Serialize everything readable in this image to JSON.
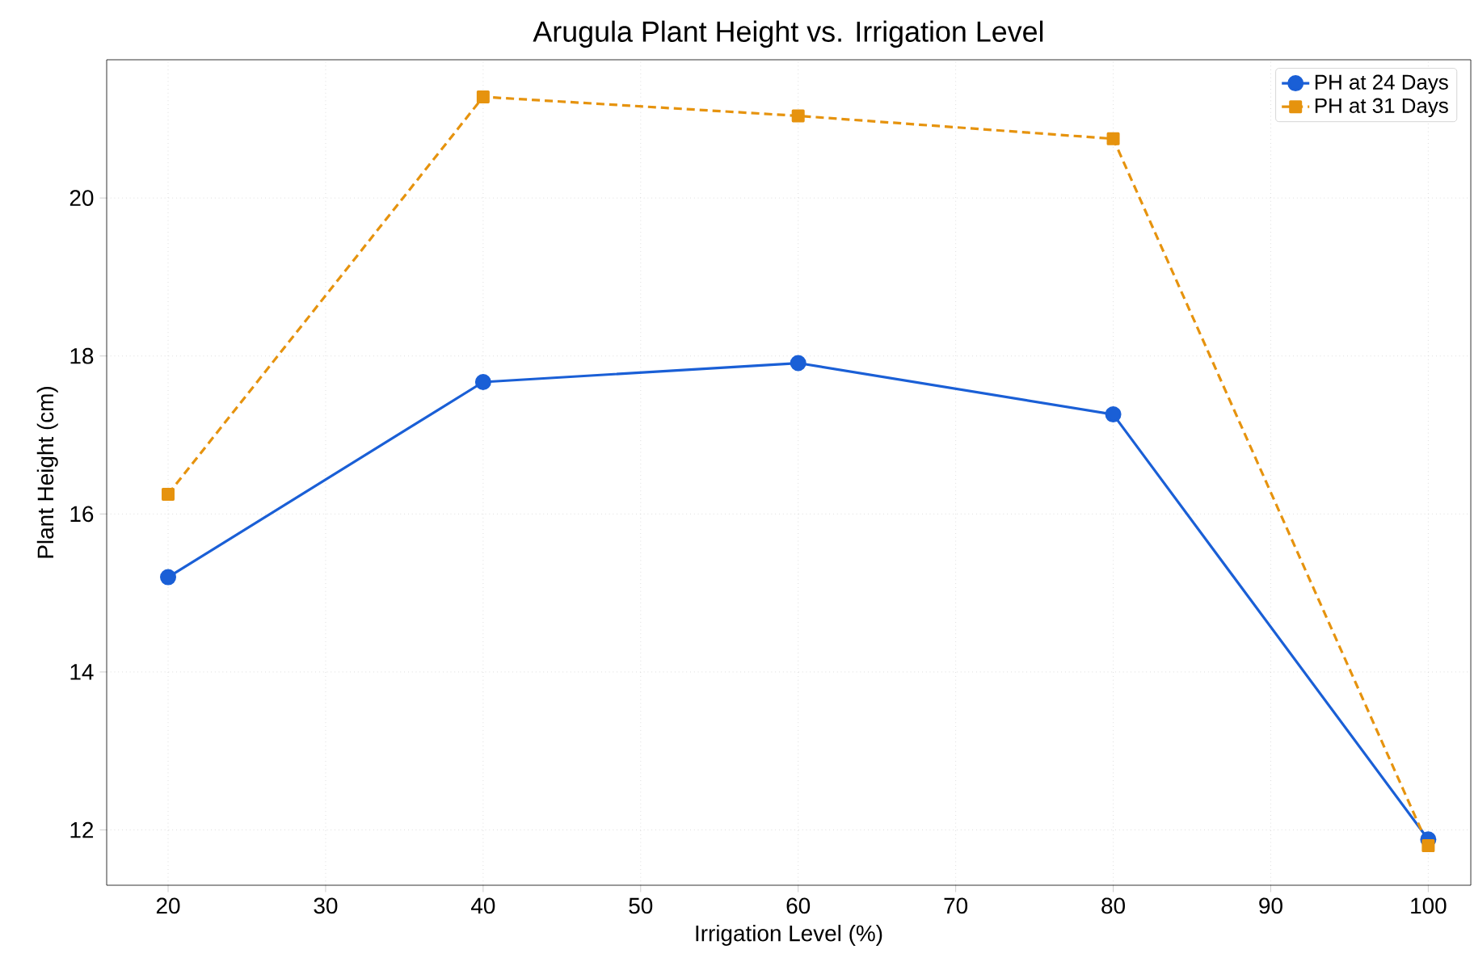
{
  "chart_data": {
    "type": "line",
    "title": "Arugula Plant Height vs. Irrigation Level",
    "xlabel": "Irrigation Level (%)",
    "ylabel": "Plant Height (cm)",
    "x": [
      20,
      40,
      60,
      80,
      100
    ],
    "series": [
      {
        "name": "PH at 24 Days",
        "color": "#1a5fd6",
        "values": [
          15.2,
          17.67,
          17.91,
          17.26,
          11.88
        ],
        "marker": "circle",
        "line_style": "solid"
      },
      {
        "name": "PH at 31 Days",
        "color": "#e6930e",
        "values": [
          16.25,
          21.28,
          21.04,
          20.75,
          11.8
        ],
        "marker": "square",
        "line_style": "dashed"
      }
    ],
    "xlim": [
      16.1,
      102.7
    ],
    "ylim": [
      11.3,
      21.75
    ],
    "xticks": [
      20,
      30,
      40,
      50,
      60,
      70,
      80,
      90,
      100
    ],
    "yticks": [
      12,
      14,
      16,
      18,
      20
    ],
    "grid": true,
    "legend": "top right"
  }
}
